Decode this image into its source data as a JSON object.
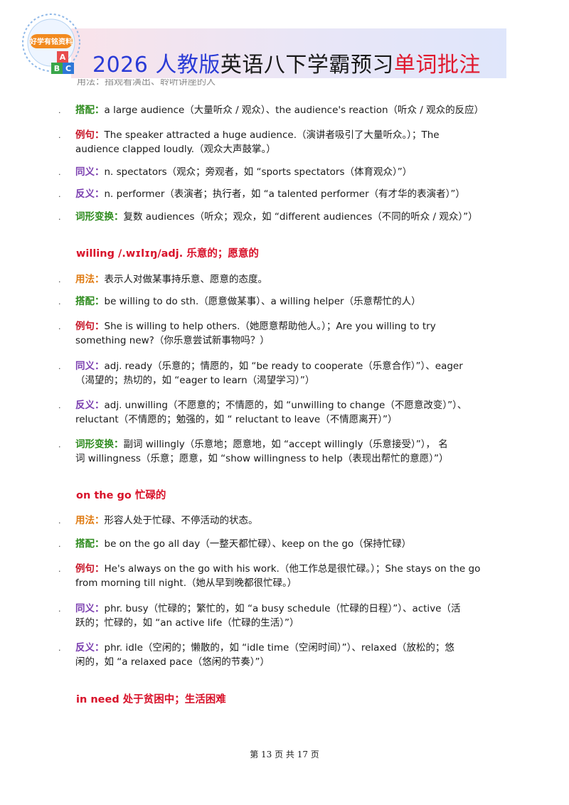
{
  "header": {
    "logo_text": "好学有铭资料",
    "logo_blocks": [
      "A",
      "B",
      "C"
    ],
    "title_part1": "2026 人教版",
    "title_part2": "英语八下学霸预习",
    "title_part3": "单词批注",
    "cutoff_text": "用法：指观看演出、聆听讲座的人"
  },
  "sections": [
    {
      "heading": "",
      "entries": [
        {
          "label": "搭配：",
          "kind": "col",
          "lines": [
            "a large audience（大量听众 / 观众）、the audience's reaction（听众 / 观众的反应）"
          ]
        },
        {
          "label": "例句：",
          "kind": "ex",
          "lines": [
            "The speaker attracted a huge audience.（演讲者吸引了大量听众。）；The",
            "audience clapped loudly.（观众大声鼓掌。）"
          ]
        },
        {
          "label": "同义：",
          "kind": "syn",
          "lines": [
            "n. spectators（观众；旁观者，如 “sports spectators（体育观众）”）"
          ]
        },
        {
          "label": "反义：",
          "kind": "ant",
          "lines": [
            "n. performer（表演者；执行者，如 “a talented performer（有才华的表演者）”）"
          ]
        },
        {
          "label": "词形变换：",
          "kind": "der",
          "lines": [
            "复数 audiences（听众；观众，如 “different audiences（不同的听众 / 观众）”）"
          ]
        }
      ]
    },
    {
      "heading": "willing /.wɪlɪŋ/adj. 乐意的；愿意的",
      "entries": [
        {
          "label": "用法：",
          "kind": "use",
          "lines": [
            "表示人对做某事持乐意、愿意的态度。"
          ]
        },
        {
          "label": "搭配：",
          "kind": "col",
          "lines": [
            "be willing to do sth.（愿意做某事）、a willing helper（乐意帮忙的人）"
          ]
        },
        {
          "label": "例句：",
          "kind": "ex",
          "lines": [
            "She is willing to help others.（她愿意帮助他人。）；Are you willing to try",
            "something new?（你乐意尝试新事物吗？）"
          ]
        },
        {
          "label": "同义：",
          "kind": "syn",
          "lines": [
            "adj. ready（乐意的；情愿的，如 “be ready to cooperate（乐意合作）”）、eager",
            "（渴望的；热切的，如 “eager to learn（渴望学习）”）"
          ]
        },
        {
          "label": "反义：",
          "kind": "ant",
          "lines": [
            "adj. unwilling（不愿意的；不情愿的，如 “unwilling to change（不愿意改变）”）、",
            "reluctant（不情愿的；勉强的，如 “ reluctant to leave（不情愿离开）”）"
          ]
        },
        {
          "label": "词形变换：",
          "kind": "der",
          "lines": [
            "副词 willingly（乐意地；愿意地，如 “accept willingly（乐意接受）”），  名",
            "词 willingness（乐意；愿意，如 “show willingness to help（表现出帮忙的意愿）”）"
          ]
        }
      ]
    },
    {
      "heading": "on the go 忙碌的",
      "entries": [
        {
          "label": "用法：",
          "kind": "use",
          "lines": [
            "形容人处于忙碌、不停活动的状态。"
          ]
        },
        {
          "label": "搭配：",
          "kind": "col",
          "lines": [
            "be on the go all day（一整天都忙碌）、keep on the go（保持忙碌）"
          ]
        },
        {
          "label": "例句：",
          "kind": "ex",
          "lines": [
            "He's always on the go with his work.（他工作总是很忙碌。）；She stays on the go",
            "from morning till night.（她从早到晚都很忙碌。）"
          ]
        },
        {
          "label": "同义：",
          "kind": "syn",
          "lines": [
            "phr. busy（忙碌的；繁忙的，如 “a busy schedule（忙碌的日程）”）、active（活",
            "跃的；忙碌的，如 “an active life（忙碌的生活）”）"
          ]
        },
        {
          "label": "反义：",
          "kind": "ant",
          "lines": [
            "phr. idle（空闲的；懒散的，如 “idle time（空闲时间）”）、relaxed（放松的；悠",
            "闲的，如 “a relaxed pace（悠闲的节奏）”）"
          ]
        }
      ]
    },
    {
      "heading": "in need 处于贫困中；生活困难",
      "entries": []
    }
  ],
  "footer": {
    "text": "第 13 页 共 17 页"
  }
}
